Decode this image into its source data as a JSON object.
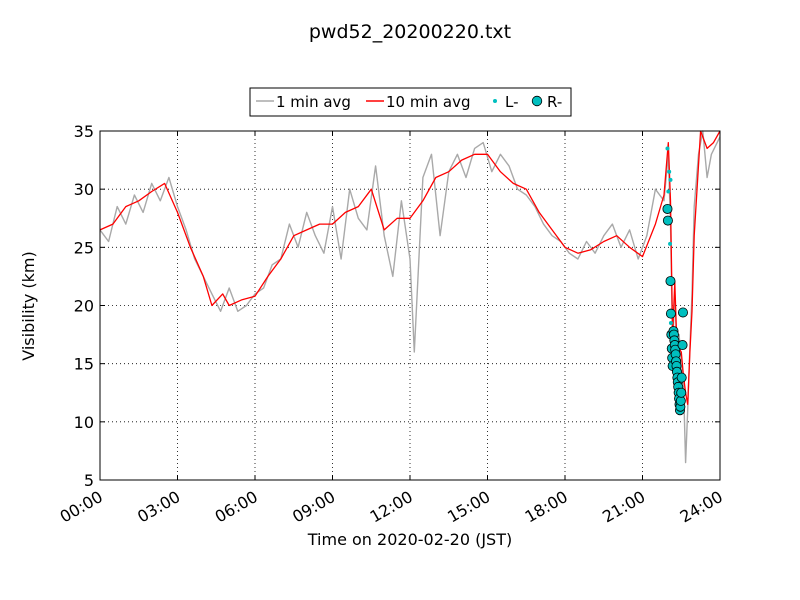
{
  "chart_data": {
    "type": "line",
    "title": "pwd52_20200220.txt",
    "xlabel": "Time on 2020-02-20 (JST)",
    "ylabel": "Visibility (km)",
    "xlim": [
      "00:00",
      "24:00"
    ],
    "ylim": [
      5,
      35
    ],
    "grid": true,
    "legend_position": "top-center",
    "x_tick_labels": [
      "00:00",
      "03:00",
      "06:00",
      "09:00",
      "12:00",
      "15:00",
      "18:00",
      "21:00",
      "24:00"
    ],
    "y_ticks": [
      5,
      10,
      15,
      20,
      25,
      30,
      35
    ],
    "series": [
      {
        "name": "1 min avg",
        "style": "line",
        "color": "#a9a9a9",
        "points": [
          [
            "00:00",
            26.5
          ],
          [
            "00:20",
            25.5
          ],
          [
            "00:40",
            28.5
          ],
          [
            "01:00",
            27.0
          ],
          [
            "01:20",
            29.5
          ],
          [
            "01:40",
            28.0
          ],
          [
            "02:00",
            30.5
          ],
          [
            "02:20",
            29.0
          ],
          [
            "02:40",
            31.0
          ],
          [
            "03:00",
            28.5
          ],
          [
            "03:20",
            26.5
          ],
          [
            "03:40",
            24.0
          ],
          [
            "04:00",
            22.5
          ],
          [
            "04:20",
            21.0
          ],
          [
            "04:40",
            19.5
          ],
          [
            "05:00",
            21.5
          ],
          [
            "05:20",
            19.5
          ],
          [
            "05:40",
            20.0
          ],
          [
            "06:00",
            21.0
          ],
          [
            "06:20",
            21.5
          ],
          [
            "06:40",
            23.5
          ],
          [
            "07:00",
            24.0
          ],
          [
            "07:20",
            27.0
          ],
          [
            "07:40",
            25.0
          ],
          [
            "08:00",
            28.0
          ],
          [
            "08:20",
            26.0
          ],
          [
            "08:40",
            24.5
          ],
          [
            "09:00",
            28.5
          ],
          [
            "09:20",
            24.0
          ],
          [
            "09:40",
            30.0
          ],
          [
            "10:00",
            27.5
          ],
          [
            "10:20",
            26.5
          ],
          [
            "10:40",
            32.0
          ],
          [
            "11:00",
            26.0
          ],
          [
            "11:20",
            22.5
          ],
          [
            "11:40",
            29.0
          ],
          [
            "12:00",
            24.0
          ],
          [
            "12:10",
            16.0
          ],
          [
            "12:30",
            31.0
          ],
          [
            "12:50",
            33.0
          ],
          [
            "13:10",
            26.0
          ],
          [
            "13:30",
            31.5
          ],
          [
            "13:50",
            33.0
          ],
          [
            "14:10",
            31.0
          ],
          [
            "14:30",
            33.5
          ],
          [
            "14:50",
            34.0
          ],
          [
            "15:10",
            31.5
          ],
          [
            "15:30",
            33.0
          ],
          [
            "15:50",
            32.0
          ],
          [
            "16:10",
            30.0
          ],
          [
            "16:30",
            29.5
          ],
          [
            "16:50",
            28.5
          ],
          [
            "17:10",
            27.0
          ],
          [
            "17:30",
            26.0
          ],
          [
            "17:50",
            25.5
          ],
          [
            "18:10",
            24.5
          ],
          [
            "18:30",
            24.0
          ],
          [
            "18:50",
            25.5
          ],
          [
            "19:10",
            24.5
          ],
          [
            "19:30",
            26.0
          ],
          [
            "19:50",
            27.0
          ],
          [
            "20:10",
            25.0
          ],
          [
            "20:30",
            26.5
          ],
          [
            "20:50",
            24.0
          ],
          [
            "21:10",
            26.0
          ],
          [
            "21:30",
            30.0
          ],
          [
            "21:50",
            29.0
          ],
          [
            "22:00",
            33.0
          ],
          [
            "22:05",
            27.0
          ],
          [
            "22:10",
            16.5
          ],
          [
            "22:15",
            21.0
          ],
          [
            "22:20",
            16.0
          ],
          [
            "22:25",
            17.5
          ],
          [
            "22:30",
            15.0
          ],
          [
            "22:35",
            13.5
          ],
          [
            "22:40",
            6.5
          ],
          [
            "22:45",
            11.0
          ],
          [
            "22:50",
            16.5
          ],
          [
            "22:55",
            21.0
          ],
          [
            "23:00",
            28.5
          ],
          [
            "23:10",
            33.0
          ],
          [
            "23:20",
            35.0
          ],
          [
            "23:30",
            31.0
          ],
          [
            "23:40",
            33.0
          ],
          [
            "24:00",
            34.5
          ]
        ]
      },
      {
        "name": "10 min avg",
        "style": "line",
        "color": "#ff0000",
        "points": [
          [
            "00:00",
            26.5
          ],
          [
            "00:30",
            27.0
          ],
          [
            "01:00",
            28.5
          ],
          [
            "01:30",
            29.0
          ],
          [
            "02:00",
            29.8
          ],
          [
            "02:30",
            30.5
          ],
          [
            "03:00",
            28.0
          ],
          [
            "03:30",
            25.0
          ],
          [
            "04:00",
            22.5
          ],
          [
            "04:20",
            20.0
          ],
          [
            "04:45",
            21.0
          ],
          [
            "05:00",
            20.0
          ],
          [
            "05:30",
            20.5
          ],
          [
            "06:00",
            20.8
          ],
          [
            "06:30",
            22.5
          ],
          [
            "07:00",
            24.0
          ],
          [
            "07:30",
            26.0
          ],
          [
            "08:00",
            26.5
          ],
          [
            "08:30",
            27.0
          ],
          [
            "09:00",
            27.0
          ],
          [
            "09:30",
            28.0
          ],
          [
            "10:00",
            28.5
          ],
          [
            "10:30",
            30.0
          ],
          [
            "11:00",
            26.5
          ],
          [
            "11:30",
            27.5
          ],
          [
            "12:00",
            27.5
          ],
          [
            "12:30",
            29.0
          ],
          [
            "13:00",
            31.0
          ],
          [
            "13:30",
            31.5
          ],
          [
            "14:00",
            32.5
          ],
          [
            "14:30",
            33.0
          ],
          [
            "15:00",
            33.0
          ],
          [
            "15:30",
            31.5
          ],
          [
            "16:00",
            30.5
          ],
          [
            "16:30",
            30.0
          ],
          [
            "17:00",
            28.0
          ],
          [
            "17:30",
            26.5
          ],
          [
            "18:00",
            25.0
          ],
          [
            "18:30",
            24.5
          ],
          [
            "19:00",
            24.8
          ],
          [
            "19:30",
            25.5
          ],
          [
            "20:00",
            26.0
          ],
          [
            "20:30",
            25.0
          ],
          [
            "21:00",
            24.2
          ],
          [
            "21:30",
            27.0
          ],
          [
            "21:50",
            29.5
          ],
          [
            "22:00",
            34.0
          ],
          [
            "22:05",
            29.0
          ],
          [
            "22:10",
            17.5
          ],
          [
            "22:15",
            22.0
          ],
          [
            "22:20",
            16.5
          ],
          [
            "22:30",
            16.0
          ],
          [
            "22:35",
            14.0
          ],
          [
            "22:40",
            12.5
          ],
          [
            "22:45",
            11.5
          ],
          [
            "22:50",
            16.0
          ],
          [
            "22:55",
            19.5
          ],
          [
            "23:00",
            26.0
          ],
          [
            "23:15",
            35.0
          ],
          [
            "23:30",
            33.5
          ],
          [
            "23:45",
            34.0
          ],
          [
            "24:00",
            35.0
          ]
        ]
      },
      {
        "name": "L-",
        "style": "small-dot",
        "color": "#00bfbf",
        "points": [
          [
            "21:58",
            33.5
          ],
          [
            "22:00",
            29.8
          ],
          [
            "22:02",
            31.5
          ],
          [
            "22:04",
            25.3
          ],
          [
            "22:05",
            30.8
          ],
          [
            "22:06",
            18.5
          ],
          [
            "22:08",
            15.0
          ],
          [
            "22:10",
            14.8
          ]
        ]
      },
      {
        "name": "R-",
        "style": "circle",
        "color": "#00bfbf",
        "points": [
          [
            "21:58",
            28.3
          ],
          [
            "21:59",
            27.3
          ],
          [
            "22:05",
            22.1
          ],
          [
            "22:06",
            19.3
          ],
          [
            "22:07",
            17.5
          ],
          [
            "22:08",
            16.3
          ],
          [
            "22:09",
            15.5
          ],
          [
            "22:10",
            14.8
          ],
          [
            "22:12",
            17.8
          ],
          [
            "22:13",
            17.5
          ],
          [
            "22:14",
            17.0
          ],
          [
            "22:15",
            16.6
          ],
          [
            "22:16",
            16.2
          ],
          [
            "22:17",
            15.8
          ],
          [
            "22:18",
            15.2
          ],
          [
            "22:19",
            14.8
          ],
          [
            "22:20",
            14.3
          ],
          [
            "22:21",
            13.8
          ],
          [
            "22:22",
            13.4
          ],
          [
            "22:23",
            13.0
          ],
          [
            "22:24",
            12.5
          ],
          [
            "22:25",
            12.0
          ],
          [
            "22:26",
            11.5
          ],
          [
            "22:27",
            11.0
          ],
          [
            "22:28",
            11.3
          ],
          [
            "22:29",
            11.8
          ],
          [
            "22:30",
            12.5
          ],
          [
            "22:31",
            13.8
          ],
          [
            "22:33",
            16.6
          ],
          [
            "22:34",
            19.4
          ]
        ]
      }
    ]
  }
}
